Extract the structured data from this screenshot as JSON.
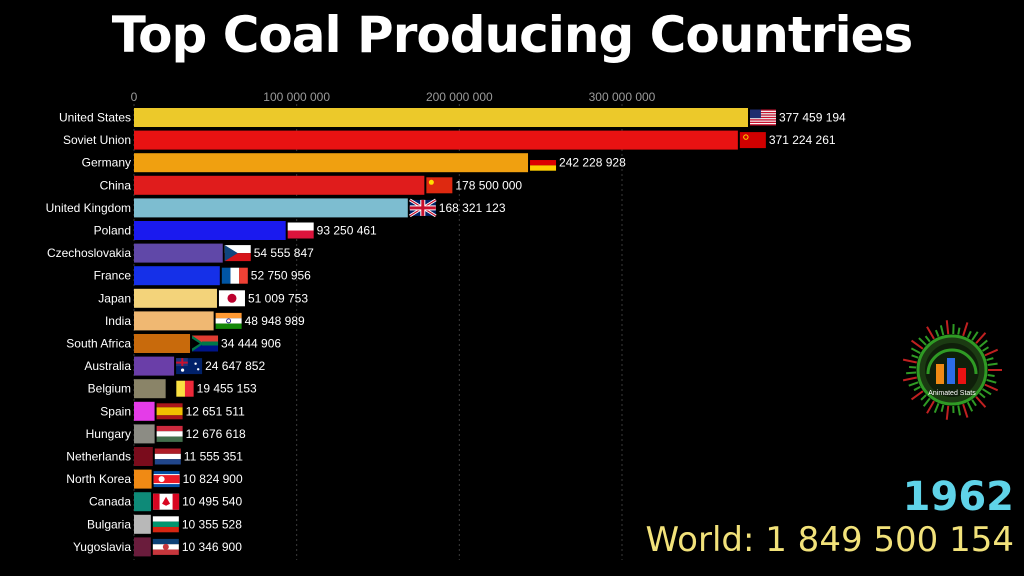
{
  "title": "Top Coal Producing Countries",
  "year": "1962",
  "world_total": "World: 1 849 500 154",
  "logo": {
    "label": "Animated Stats",
    "icon": "animated-stats-logo"
  },
  "chart_data": {
    "type": "bar",
    "orientation": "horizontal",
    "xlim": [
      0,
      377459194
    ],
    "x_ticks": [
      {
        "value": 0,
        "label": "0"
      },
      {
        "value": 100000000,
        "label": "100 000 000"
      },
      {
        "value": 200000000,
        "label": "200 000 000"
      },
      {
        "value": 300000000,
        "label": "300 000 000"
      }
    ],
    "grid": true,
    "bars": [
      {
        "name": "United States",
        "value": 377459194,
        "label": "377 459 194",
        "color": "#ecc92a",
        "flag": "us"
      },
      {
        "name": "Soviet Union",
        "value": 371224261,
        "label": "371 224 261",
        "color": "#e81212",
        "flag": "ussr"
      },
      {
        "name": "Germany",
        "value": 242228928,
        "label": "242 228 928",
        "color": "#f0a010",
        "flag": "de"
      },
      {
        "name": "China",
        "value": 178500000,
        "label": "178 500 000",
        "color": "#e01c1c",
        "flag": "cn"
      },
      {
        "name": "United Kingdom",
        "value": 168321123,
        "label": "168 321 123",
        "color": "#7dbdd0",
        "flag": "gb"
      },
      {
        "name": "Poland",
        "value": 93250461,
        "label": "93 250 461",
        "color": "#1a1aef",
        "flag": "pl"
      },
      {
        "name": "Czechoslovakia",
        "value": 54555847,
        "label": "54 555 847",
        "color": "#6048a8",
        "flag": "cz"
      },
      {
        "name": "France",
        "value": 52750956,
        "label": "52 750 956",
        "color": "#1530e8",
        "flag": "fr"
      },
      {
        "name": "Japan",
        "value": 51009753,
        "label": "51 009 753",
        "color": "#f3d37a",
        "flag": "jp"
      },
      {
        "name": "India",
        "value": 48948989,
        "label": "48 948 989",
        "color": "#f0b872",
        "flag": "in"
      },
      {
        "name": "South Africa",
        "value": 34444906,
        "label": "34 444 906",
        "color": "#c86a0c",
        "flag": "za"
      },
      {
        "name": "Australia",
        "value": 24647852,
        "label": "24 647 852",
        "color": "#6a3ea8",
        "flag": "au"
      },
      {
        "name": "Belgium",
        "value": 19455153,
        "label": "19 455 153",
        "color": "#8a8468",
        "flag": "be"
      },
      {
        "name": "Spain",
        "value": 12651511,
        "label": "12 651 511",
        "color": "#e43ce8",
        "flag": "es"
      },
      {
        "name": "Hungary",
        "value": 12676618,
        "label": "12 676 618",
        "color": "#8c8c84",
        "flag": "hu"
      },
      {
        "name": "Netherlands",
        "value": 11555351,
        "label": "11 555 351",
        "color": "#7a0c1c",
        "flag": "nl"
      },
      {
        "name": "North Korea",
        "value": 10824900,
        "label": "10 824 900",
        "color": "#f08a14",
        "flag": "kp"
      },
      {
        "name": "Canada",
        "value": 10495540,
        "label": "10 495 540",
        "color": "#0e8a78",
        "flag": "ca"
      },
      {
        "name": "Bulgaria",
        "value": 10355528,
        "label": "10 355 528",
        "color": "#b8b8b8",
        "flag": "bg"
      },
      {
        "name": "Yugoslavia",
        "value": 10346900,
        "label": "10 346 900",
        "color": "#6a1c3c",
        "flag": "yu"
      }
    ]
  }
}
